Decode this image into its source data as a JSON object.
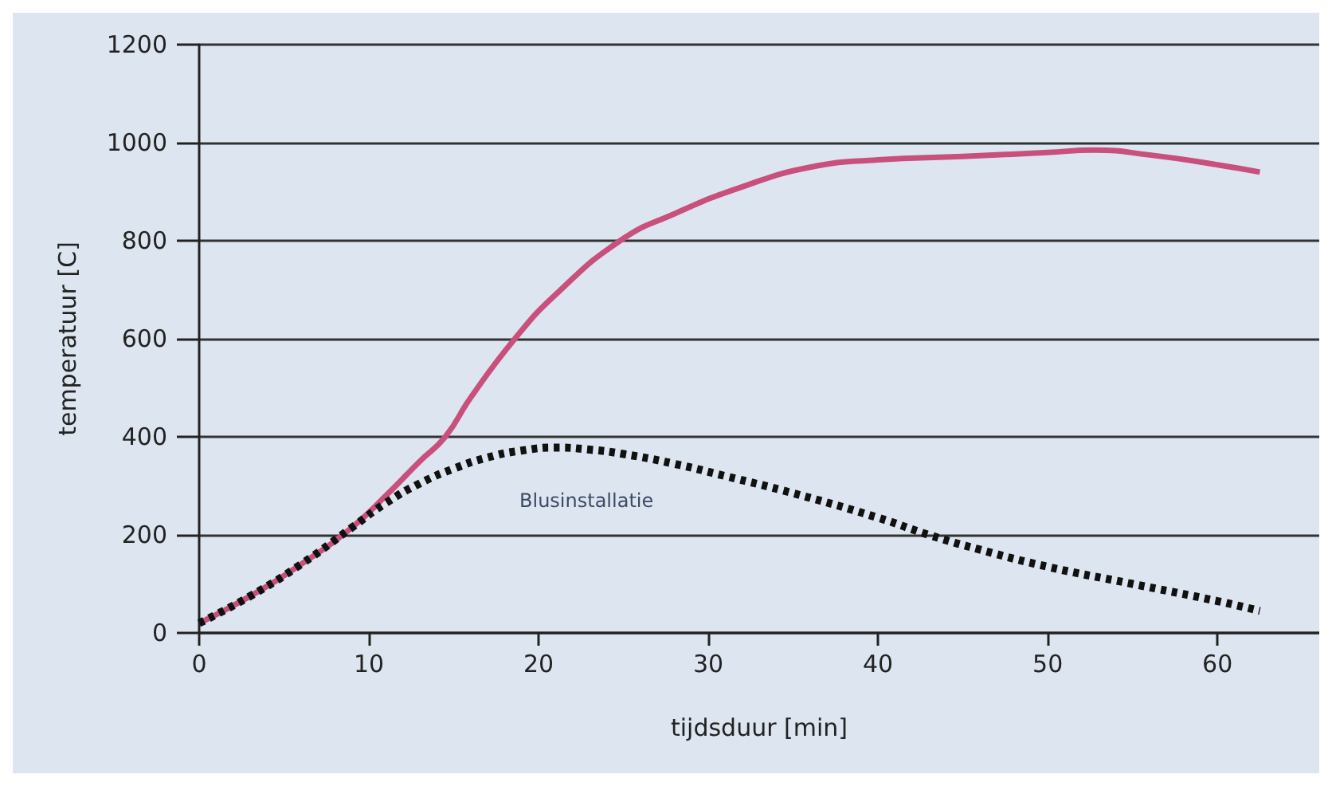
{
  "chart_data": {
    "type": "line",
    "xlabel": "tijdsduur [min]",
    "ylabel": "temperatuur [C]",
    "xlim": [
      0,
      66
    ],
    "xticks": [
      0,
      10,
      20,
      30,
      40,
      50,
      60
    ],
    "ylim": [
      0,
      1200
    ],
    "yticks": [
      0,
      200,
      400,
      600,
      800,
      1000,
      1200
    ],
    "grid": "y",
    "marker": "none",
    "annotations": [
      "Blusinstallatie"
    ],
    "series": [
      {
        "color": "#c9507c",
        "line_style": "solid",
        "x": [
          0,
          3,
          6,
          9,
          11,
          13,
          14.5,
          16,
          18.6,
          21,
          24.8,
          28,
          32,
          36,
          40,
          45,
          50,
          52.7,
          56,
          60,
          62.5
        ],
        "values": [
          20,
          75,
          140,
          215,
          280,
          350,
          400,
          480,
          600,
          690,
          800,
          855,
          910,
          950,
          965,
          972,
          980,
          985,
          975,
          955,
          940
        ]
      },
      {
        "color": "#111111",
        "line_style": "dashed",
        "x": [
          0,
          3,
          6,
          9,
          11,
          13,
          15,
          17,
          19,
          21,
          23,
          25,
          28,
          31,
          35,
          40,
          43,
          46,
          50,
          55,
          60,
          62.5
        ],
        "values": [
          20,
          75,
          140,
          215,
          265,
          305,
          335,
          358,
          372,
          378,
          374,
          365,
          345,
          320,
          285,
          235,
          200,
          170,
          135,
          100,
          65,
          45
        ]
      }
    ]
  }
}
